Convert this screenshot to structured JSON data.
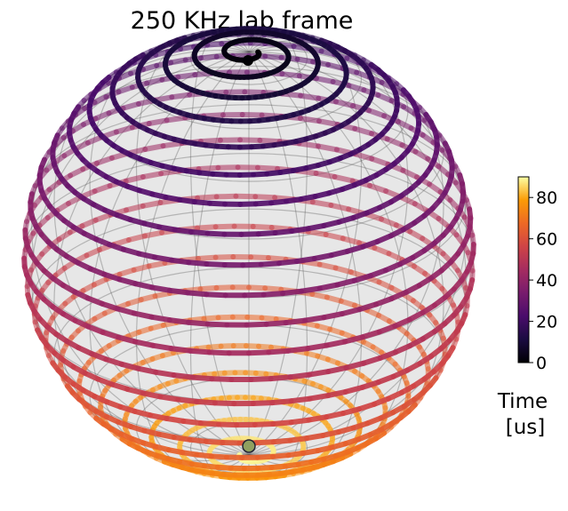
{
  "chart_data": {
    "type": "bloch_sphere",
    "title": "250 KHz lab frame",
    "colorbar": {
      "label_line1": "Time",
      "label_line2": "[us]",
      "range": [
        0,
        90
      ],
      "ticks": [
        0,
        20,
        40,
        60,
        80
      ],
      "colormap": "inferno"
    },
    "trajectory": {
      "t_range": [
        0,
        90
      ],
      "start": "north-pole",
      "end": "south-pole"
    },
    "background": "#ffffff",
    "sphere_fill": "#e4e4e4",
    "grid": true
  }
}
